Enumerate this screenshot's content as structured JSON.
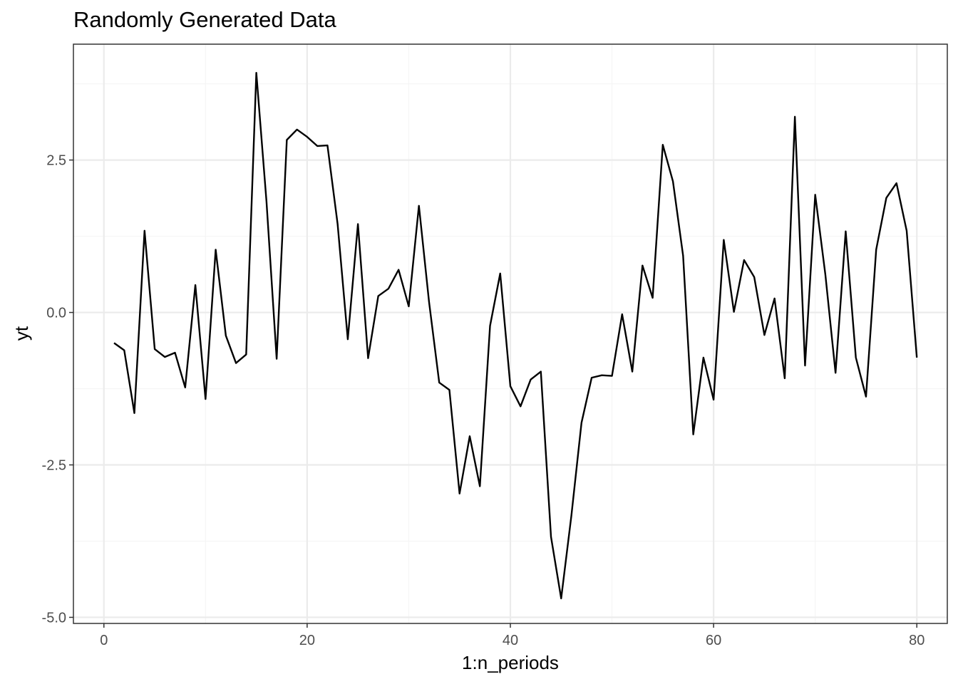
{
  "chart_data": {
    "type": "line",
    "title": "Randomly Generated Data",
    "xlabel": "1:n_periods",
    "ylabel": "yt",
    "xlim": [
      -3,
      83
    ],
    "ylim": [
      -5.1,
      4.4
    ],
    "x_ticks": [
      0,
      20,
      40,
      60,
      80
    ],
    "x_tick_labels": [
      "0",
      "20",
      "40",
      "60",
      "80"
    ],
    "x_minor_ticks": [
      10,
      30,
      50,
      70
    ],
    "y_ticks": [
      -5.0,
      -2.5,
      0.0,
      2.5
    ],
    "y_tick_labels": [
      "-5.0",
      "-2.5",
      "0.0",
      "2.5"
    ],
    "y_minor_ticks": [
      -3.75,
      -1.25,
      1.25,
      3.75
    ],
    "grid": true,
    "theme": "bw",
    "colors": {
      "line": "#000000",
      "grid_major": "#ebebeb",
      "grid_minor": "#f5f5f5",
      "panel_border": "#333333",
      "tick_text": "#4d4d4d"
    },
    "series": [
      {
        "name": "yt",
        "x": [
          1,
          2,
          3,
          4,
          5,
          6,
          7,
          8,
          9,
          10,
          11,
          12,
          13,
          14,
          15,
          16,
          17,
          18,
          19,
          20,
          21,
          22,
          23,
          24,
          25,
          26,
          27,
          28,
          29,
          30,
          31,
          32,
          33,
          34,
          35,
          36,
          37,
          38,
          39,
          40,
          41,
          42,
          43,
          44,
          45,
          46,
          47,
          48,
          49,
          50,
          51,
          52,
          53,
          54,
          55,
          56,
          57,
          58,
          59,
          60,
          61,
          62,
          63,
          64,
          65,
          66,
          67,
          68,
          69,
          70,
          71,
          72,
          73,
          74,
          75,
          76,
          77,
          78,
          79,
          80
        ],
        "values": [
          -0.5,
          -0.62,
          -1.65,
          1.34,
          -0.6,
          -0.73,
          -0.66,
          -1.23,
          0.45,
          -1.42,
          1.03,
          -0.38,
          -0.83,
          -0.69,
          3.93,
          1.82,
          -0.76,
          2.83,
          3,
          2.88,
          2.73,
          2.74,
          1.45,
          -0.44,
          1.45,
          -0.75,
          0.27,
          0.39,
          0.7,
          0.1,
          1.75,
          0.17,
          -1.15,
          -1.27,
          -2.97,
          -2.03,
          -2.85,
          -0.22,
          0.64,
          -1.21,
          -1.54,
          -1.1,
          -0.97,
          -3.68,
          -4.69,
          -3.34,
          -1.81,
          -1.07,
          -1.03,
          -1.04,
          -0.03,
          -0.97,
          0.77,
          0.24,
          2.75,
          2.15,
          0.93,
          -2.0,
          -0.74,
          -1.43,
          1.19,
          0.01,
          0.86,
          0.58,
          -0.37,
          0.23,
          -1.08,
          3.21,
          -0.87,
          1.93,
          0.62,
          -0.99,
          1.33,
          -0.74,
          -1.38,
          1.03,
          1.88,
          2.12,
          1.34,
          -0.74
        ]
      }
    ]
  }
}
